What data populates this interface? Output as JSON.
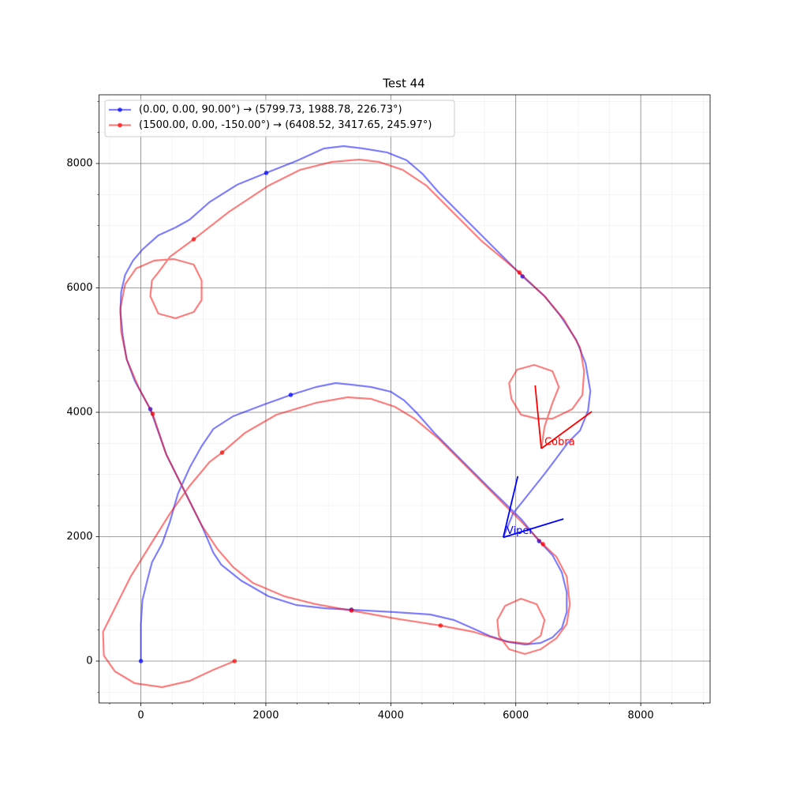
{
  "chart_data": {
    "type": "line",
    "title": "Test 44",
    "xlim": [
      -670,
      9110
    ],
    "ylim": [
      -673,
      9105
    ],
    "xticks": [
      0,
      2000,
      4000,
      6000,
      8000
    ],
    "yticks": [
      0,
      2000,
      4000,
      6000,
      8000
    ],
    "xticks_minor": [
      -500,
      500,
      1000,
      1500,
      2500,
      3000,
      3500,
      4500,
      5000,
      5500,
      6500,
      7000,
      7500,
      8500,
      9000
    ],
    "yticks_minor": [
      -500,
      500,
      1000,
      1500,
      2500,
      3000,
      3500,
      4500,
      5000,
      5500,
      6500,
      7000,
      7500,
      8500,
      9000
    ],
    "grid": true,
    "legend": "upper left",
    "alpha": 0.5,
    "series": [
      {
        "name": "(0.00, 0.00, 90.00°) → (5799.73, 1988.78, 226.73°)",
        "color": "blue",
        "x": [
          0,
          0,
          25,
          101,
          177,
          341,
          467,
          593,
          782,
          972,
          1161,
          1477,
          1981,
          2398,
          2802,
          3117,
          3370,
          3685,
          4001,
          4215,
          4417,
          4695,
          5073,
          5578,
          6083,
          6373,
          6588,
          6739,
          6815,
          6815,
          6739,
          6588,
          6398,
          6146,
          5894,
          5578,
          5326,
          5010,
          4631,
          4064,
          3370,
          2928,
          2486,
          2044,
          1603,
          1287,
          1161,
          972,
          782,
          593,
          404,
          151,
          -101,
          -227,
          -290,
          -328,
          -316,
          -252,
          -126,
          25,
          278,
          555,
          782,
          1098,
          1540,
          2007,
          2486,
          2928,
          3243,
          3559,
          3937,
          4253,
          4505,
          4758,
          5136,
          5641,
          6108,
          6461,
          6714,
          6966,
          7118,
          7193,
          7156,
          7029,
          6840,
          6651,
          6461,
          6209,
          5957,
          5799.73
        ],
        "y": [
          0,
          597,
          978,
          1295,
          1588,
          1892,
          2248,
          2692,
          3112,
          3454,
          3734,
          3937,
          4128,
          4280,
          4407,
          4470,
          4445,
          4407,
          4331,
          4191,
          3988,
          3670,
          3289,
          2781,
          2286,
          1930,
          1702,
          1422,
          1105,
          787,
          533,
          381,
          292,
          267,
          305,
          406,
          521,
          660,
          749,
          787,
          826,
          851,
          902,
          1041,
          1295,
          1549,
          1740,
          2184,
          2565,
          2946,
          3327,
          4051,
          4509,
          4851,
          5232,
          5613,
          5931,
          6210,
          6439,
          6617,
          6845,
          6972,
          7099,
          7379,
          7658,
          7849,
          8039,
          8242,
          8280,
          8242,
          8179,
          8052,
          7836,
          7544,
          7163,
          6655,
          6185,
          5867,
          5550,
          5169,
          4788,
          4343,
          4026,
          3708,
          3518,
          3264,
          3010,
          2692,
          2375,
          1988.78
        ],
        "markers": {
          "x": [
            0,
            2398,
            6373,
            3370,
            151,
            2007,
            6108
          ],
          "y": [
            0,
            4280,
            1930,
            826,
            4051,
            7849,
            6185
          ]
        }
      },
      {
        "name": "(1500.00, 0.00, -150.00°) → (6408.52, 3417.65, 245.97°)",
        "color": "red",
        "x": [
          1500,
          1161,
          782,
          341,
          -101,
          -416,
          -593,
          -606,
          -416,
          -164,
          151,
          467,
          782,
          1098,
          1300,
          1666,
          2171,
          2802,
          3306,
          3685,
          4064,
          4379,
          4758,
          5200,
          5704,
          6083,
          6436,
          6651,
          6815,
          6865,
          6815,
          6651,
          6398,
          6146,
          5894,
          5729,
          5704,
          5830,
          6083,
          6335,
          6461,
          6398,
          6209,
          5830,
          5326,
          4796,
          4064,
          3370,
          2802,
          2297,
          1792,
          1477,
          1224,
          972,
          782,
          593,
          404,
          189,
          -38,
          -227,
          -316,
          -328,
          -252,
          -76,
          215,
          530,
          846,
          972,
          972,
          846,
          555,
          278,
          151,
          177,
          278,
          467,
          846,
          1413,
          2044,
          2549,
          3054,
          3496,
          3811,
          4190,
          4569,
          4947,
          5452,
          6058,
          6461,
          6777,
          7029,
          7093,
          7067,
          6903,
          6588,
          6335,
          6083,
          5931,
          5894,
          6020,
          6297,
          6588,
          6689,
          6588,
          6461,
          6408.52
        ],
        "y": [
          0,
          -140,
          -318,
          -419,
          -356,
          -165,
          89,
          470,
          851,
          1359,
          1867,
          2375,
          2819,
          3200,
          3353,
          3670,
          3962,
          4153,
          4242,
          4216,
          4089,
          3899,
          3581,
          3137,
          2629,
          2248,
          1880,
          1676,
          1359,
          914,
          597,
          368,
          191,
          114,
          191,
          406,
          660,
          889,
          1003,
          914,
          660,
          406,
          279,
          318,
          470,
          572,
          686,
          813,
          914,
          1041,
          1257,
          1511,
          1803,
          2184,
          2565,
          2946,
          3327,
          3975,
          4407,
          4851,
          5296,
          5677,
          6058,
          6312,
          6439,
          6464,
          6375,
          6121,
          5804,
          5613,
          5512,
          5588,
          5867,
          6121,
          6248,
          6502,
          6782,
          7226,
          7645,
          7899,
          8026,
          8064,
          8026,
          7899,
          7645,
          7264,
          6756,
          6248,
          5867,
          5486,
          5042,
          4661,
          4280,
          4051,
          3899,
          3899,
          3962,
          4216,
          4470,
          4686,
          4762,
          4661,
          4407,
          4153,
          3772,
          3417.65
        ],
        "markers": {
          "x": [
            1500,
            1300,
            189,
            846,
            6058,
            6436,
            4796,
            3370
          ],
          "y": [
            0,
            3353,
            3975,
            6782,
            6248,
            1880,
            572,
            813
          ]
        }
      }
    ],
    "annotations": [
      {
        "text": "Viper",
        "color": "blue",
        "x": 5799.73,
        "y": 1988.78,
        "lines": [
          [
            6032,
            2972
          ],
          [
            6764,
            2286
          ]
        ]
      },
      {
        "text": "Cobra",
        "color": "red",
        "x": 6408.52,
        "y": 3417.65,
        "lines": [
          [
            6310,
            4432
          ],
          [
            7218,
            4013
          ]
        ]
      }
    ]
  }
}
